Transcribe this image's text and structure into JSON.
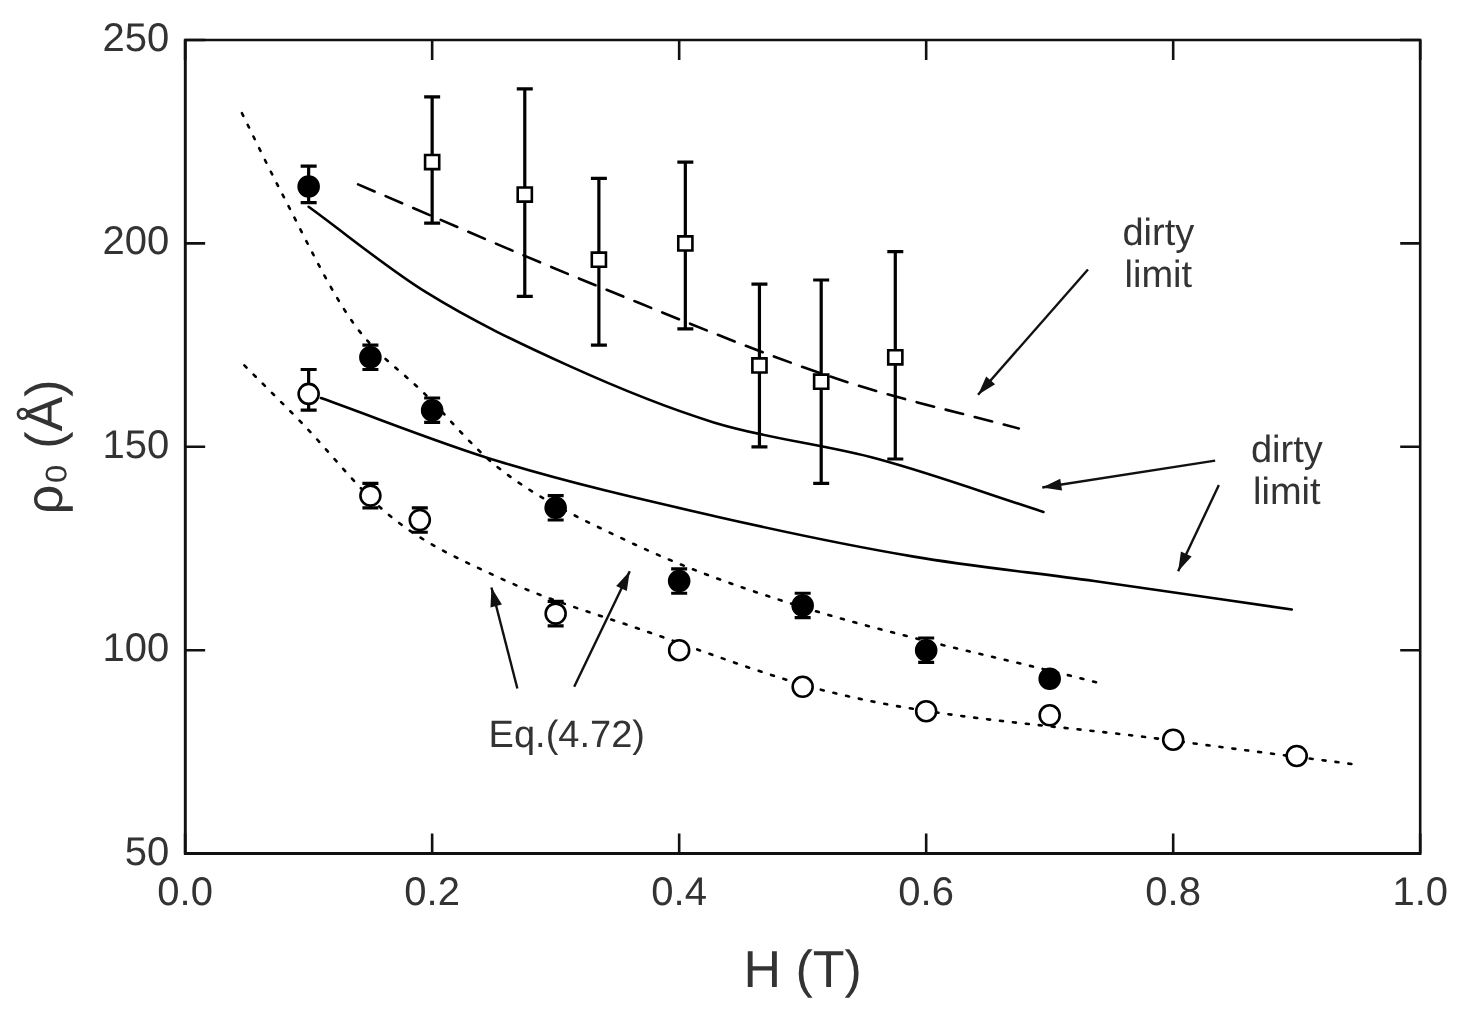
{
  "chart_data": {
    "type": "scatter",
    "xlabel": "H (T)",
    "ylabel": "ρ₀ (Å)",
    "xlim": [
      0,
      1
    ],
    "ylim": [
      50,
      250
    ],
    "xticks": [
      {
        "value": 0,
        "label": "0.0"
      },
      {
        "value": 0.2,
        "label": "0.2"
      },
      {
        "value": 0.4,
        "label": "0.4"
      },
      {
        "value": 0.6,
        "label": "0.6"
      },
      {
        "value": 0.8,
        "label": "0.8"
      },
      {
        "value": 1,
        "label": "1.0"
      }
    ],
    "yticks": [
      50,
      100,
      150,
      200,
      250
    ],
    "grid": false,
    "legend": false,
    "series": [
      {
        "marker": "square",
        "color": "#ffffff",
        "x": [
          0.2,
          0.275,
          0.335,
          0.405,
          0.465,
          0.515,
          0.575
        ],
        "values": [
          220,
          212,
          196,
          200,
          170,
          166,
          172
        ],
        "errors": [
          [
            205,
            236
          ],
          [
            187,
            238
          ],
          [
            175,
            216
          ],
          [
            179,
            220
          ],
          [
            150,
            190
          ],
          [
            141,
            191
          ],
          [
            147,
            198
          ]
        ]
      },
      {
        "marker": "circle",
        "color": "#000000",
        "x": [
          0.1,
          0.15,
          0.2,
          0.3,
          0.4,
          0.5,
          0.6,
          0.7
        ],
        "values": [
          214,
          172,
          159,
          135,
          117,
          111,
          100,
          93
        ],
        "errors": [
          [
            210,
            219
          ],
          [
            169,
            175
          ],
          [
            156,
            162
          ],
          [
            132,
            138
          ],
          [
            114,
            120
          ],
          [
            108,
            114
          ],
          [
            97,
            103
          ],
          null
        ]
      },
      {
        "marker": "circle",
        "color": "#ffffff",
        "x": [
          0.1,
          0.15,
          0.19,
          0.3,
          0.4,
          0.5,
          0.6,
          0.7,
          0.8,
          0.9
        ],
        "values": [
          163,
          138,
          132,
          109,
          100,
          91,
          85,
          84,
          78,
          74
        ],
        "errors": [
          [
            159,
            169
          ],
          [
            135,
            141
          ],
          [
            129,
            135
          ],
          [
            106,
            112
          ],
          null,
          null,
          null,
          null,
          null,
          null
        ]
      },
      {
        "type": "line",
        "line_style": "dashed",
        "color": "#000000",
        "x": [
          0.14,
          0.334,
          0.532,
          0.675
        ],
        "values": [
          214.5,
          189.5,
          166.3,
          154.5
        ]
      },
      {
        "type": "line",
        "line_style": "solid",
        "color": "#000000",
        "x": [
          0.1,
          0.195,
          0.31,
          0.428,
          0.561,
          0.695
        ],
        "values": [
          209,
          188,
          170,
          156,
          147,
          134
        ]
      },
      {
        "type": "line",
        "line_style": "solid",
        "color": "#000000",
        "x": [
          0.11,
          0.253,
          0.428,
          0.59,
          0.736,
          0.896
        ],
        "values": [
          162,
          146.5,
          133,
          123,
          117,
          110
        ]
      },
      {
        "type": "line",
        "line_style": "dotted",
        "color": "#000000",
        "x": [
          0.046,
          0.078,
          0.136,
          0.194,
          0.253,
          0.357,
          0.485,
          0.739
        ],
        "values": [
          232,
          212.5,
          180.5,
          163,
          145,
          127,
          112,
          92
        ]
      },
      {
        "type": "line",
        "line_style": "dotted",
        "color": "#000000",
        "x": [
          0.048,
          0.094,
          0.166,
          0.253,
          0.37,
          0.532,
          0.794,
          0.945
        ],
        "values": [
          170,
          156,
          133,
          118,
          105,
          89,
          78,
          72
        ]
      }
    ],
    "annotations": [
      "dirty\nlimit",
      "dirty\nlimit",
      "Eq.(4.72)"
    ]
  }
}
